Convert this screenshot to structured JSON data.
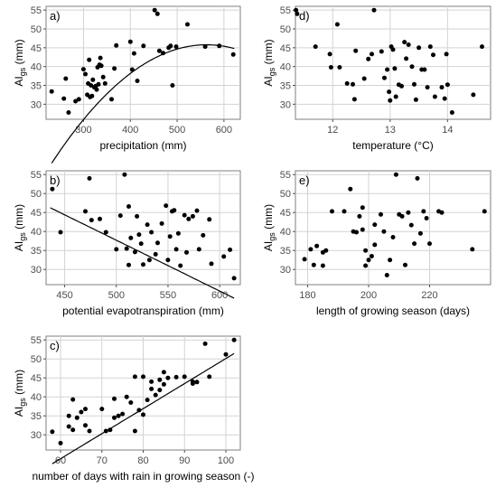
{
  "chart_data": [
    {
      "id": "a",
      "type": "scatter",
      "panel_label": "a)",
      "xlabel": "precipitation (mm)",
      "ylabel_main": "AI",
      "ylabel_sub": "gs",
      "ylabel_unit": " (mm)",
      "xlim": [
        220,
        635
      ],
      "ylim": [
        26,
        56
      ],
      "xticks": [
        300,
        400,
        500,
        600
      ],
      "yticks": [
        30,
        35,
        40,
        45,
        50,
        55
      ],
      "grid": true,
      "fit": {
        "kind": "quadratic",
        "x_range": [
          232,
          622
        ],
        "coef": [
          -0.000287,
          0.3232,
          -45.2
        ]
      },
      "points": [
        [
          232,
          33.4
        ],
        [
          258,
          31.5
        ],
        [
          262,
          36.8
        ],
        [
          268,
          27.8
        ],
        [
          283,
          30.8
        ],
        [
          290,
          31.3
        ],
        [
          300,
          39.3
        ],
        [
          304,
          38.0
        ],
        [
          308,
          32.5
        ],
        [
          310,
          35.5
        ],
        [
          312,
          41.8
        ],
        [
          314,
          31.9
        ],
        [
          316,
          35.0
        ],
        [
          318,
          32.2
        ],
        [
          320,
          36.5
        ],
        [
          323,
          34.5
        ],
        [
          326,
          34.8
        ],
        [
          328,
          33.9
        ],
        [
          330,
          39.8
        ],
        [
          332,
          35.3
        ],
        [
          334,
          40.5
        ],
        [
          336,
          42.3
        ],
        [
          338,
          40.2
        ],
        [
          342,
          37.2
        ],
        [
          346,
          35.5
        ],
        [
          360,
          31.3
        ],
        [
          366,
          39.5
        ],
        [
          370,
          45.6
        ],
        [
          400,
          46.6
        ],
        [
          404,
          39.2
        ],
        [
          408,
          43.5
        ],
        [
          415,
          36.2
        ],
        [
          428,
          45.5
        ],
        [
          452,
          55.0
        ],
        [
          458,
          54.0
        ],
        [
          462,
          44.2
        ],
        [
          470,
          43.6
        ],
        [
          482,
          45.0
        ],
        [
          486,
          45.5
        ],
        [
          490,
          35.0
        ],
        [
          498,
          45.3
        ],
        [
          522,
          51.2
        ],
        [
          560,
          45.3
        ],
        [
          590,
          45.5
        ],
        [
          620,
          43.2
        ]
      ]
    },
    {
      "id": "d",
      "type": "scatter",
      "panel_label": "d)",
      "xlabel": "temperature (°C)",
      "ylabel_main": "AI",
      "ylabel_sub": "gs",
      "ylabel_unit": " (mm)",
      "xlim": [
        11.35,
        14.75
      ],
      "ylim": [
        26,
        56
      ],
      "xticks": [
        12,
        13,
        14
      ],
      "yticks": [
        30,
        35,
        40,
        45,
        50,
        55
      ],
      "grid": true,
      "points": [
        [
          11.36,
          55.0
        ],
        [
          11.38,
          54.0
        ],
        [
          11.7,
          45.3
        ],
        [
          11.95,
          43.3
        ],
        [
          11.97,
          39.8
        ],
        [
          12.08,
          51.2
        ],
        [
          12.12,
          39.8
        ],
        [
          12.25,
          35.5
        ],
        [
          12.35,
          35.3
        ],
        [
          12.38,
          31.3
        ],
        [
          12.4,
          44.2
        ],
        [
          12.55,
          36.8
        ],
        [
          12.62,
          42.0
        ],
        [
          12.68,
          43.3
        ],
        [
          12.72,
          55.0
        ],
        [
          12.85,
          44.0
        ],
        [
          12.9,
          37.0
        ],
        [
          12.95,
          39.2
        ],
        [
          12.98,
          33.3
        ],
        [
          13.0,
          31.0
        ],
        [
          13.02,
          45.3
        ],
        [
          13.05,
          44.5
        ],
        [
          13.08,
          39.5
        ],
        [
          13.1,
          32.0
        ],
        [
          13.15,
          35.2
        ],
        [
          13.2,
          34.8
        ],
        [
          13.25,
          46.5
        ],
        [
          13.28,
          42.1
        ],
        [
          13.32,
          45.8
        ],
        [
          13.38,
          40.0
        ],
        [
          13.42,
          35.3
        ],
        [
          13.45,
          31.2
        ],
        [
          13.5,
          45.0
        ],
        [
          13.55,
          39.2
        ],
        [
          13.6,
          39.2
        ],
        [
          13.65,
          34.5
        ],
        [
          13.7,
          45.3
        ],
        [
          13.75,
          43.1
        ],
        [
          13.78,
          32.0
        ],
        [
          13.9,
          34.5
        ],
        [
          13.95,
          31.5
        ],
        [
          13.98,
          43.3
        ],
        [
          14.0,
          35.2
        ],
        [
          14.08,
          27.8
        ],
        [
          14.45,
          32.5
        ],
        [
          14.6,
          45.3
        ]
      ]
    },
    {
      "id": "b",
      "type": "scatter",
      "panel_label": "b)",
      "xlabel": "potential evapotranspiration (mm)",
      "ylabel_main": "AI",
      "ylabel_sub": "gs",
      "ylabel_unit": " (mm)",
      "xlim": [
        432,
        620
      ],
      "ylim": [
        26,
        56
      ],
      "xticks": [
        450,
        500,
        550,
        600
      ],
      "yticks": [
        30,
        35,
        40,
        45,
        50,
        55
      ],
      "grid": true,
      "fit": {
        "kind": "linear",
        "x_range": [
          436,
          614
        ],
        "coef": [
          104.6,
          -0.1338
        ]
      },
      "points": [
        [
          438,
          51.2
        ],
        [
          446,
          39.8
        ],
        [
          470,
          45.3
        ],
        [
          474,
          54.0
        ],
        [
          476,
          43.0
        ],
        [
          484,
          43.3
        ],
        [
          490,
          39.8
        ],
        [
          500,
          35.3
        ],
        [
          504,
          44.2
        ],
        [
          508,
          55.0
        ],
        [
          510,
          35.5
        ],
        [
          512,
          31.2
        ],
        [
          512,
          46.6
        ],
        [
          514,
          38.3
        ],
        [
          518,
          34.6
        ],
        [
          520,
          44.0
        ],
        [
          522,
          39.2
        ],
        [
          524,
          36.8
        ],
        [
          526,
          31.3
        ],
        [
          530,
          41.8
        ],
        [
          532,
          32.5
        ],
        [
          534,
          39.8
        ],
        [
          538,
          34.0
        ],
        [
          540,
          37.0
        ],
        [
          544,
          42.1
        ],
        [
          548,
          46.8
        ],
        [
          550,
          32.5
        ],
        [
          552,
          38.7
        ],
        [
          554,
          45.3
        ],
        [
          556,
          45.6
        ],
        [
          558,
          35.3
        ],
        [
          560,
          39.5
        ],
        [
          562,
          31.0
        ],
        [
          566,
          44.3
        ],
        [
          568,
          34.5
        ],
        [
          570,
          43.3
        ],
        [
          574,
          44.0
        ],
        [
          578,
          45.5
        ],
        [
          580,
          35.3
        ],
        [
          584,
          39.0
        ],
        [
          590,
          43.2
        ],
        [
          592,
          31.5
        ],
        [
          604,
          33.4
        ],
        [
          610,
          35.2
        ],
        [
          614,
          27.7
        ]
      ]
    },
    {
      "id": "e",
      "type": "scatter",
      "panel_label": "e)",
      "xlabel": "length of growing season (days)",
      "ylabel_main": "AI",
      "ylabel_sub": "gs",
      "ylabel_unit": " (mm)",
      "xlim": [
        176,
        240
      ],
      "ylim": [
        26,
        56
      ],
      "xticks": [
        180,
        200,
        220
      ],
      "yticks": [
        30,
        35,
        40,
        45,
        50,
        55
      ],
      "grid": true,
      "points": [
        [
          179,
          32.7
        ],
        [
          181,
          35.3
        ],
        [
          182,
          31.2
        ],
        [
          183,
          36.2
        ],
        [
          185,
          31.0
        ],
        [
          185,
          34.5
        ],
        [
          186,
          35.0
        ],
        [
          188,
          45.3
        ],
        [
          192,
          45.3
        ],
        [
          194,
          51.2
        ],
        [
          195,
          40.0
        ],
        [
          196,
          39.8
        ],
        [
          197,
          44.0
        ],
        [
          198,
          46.3
        ],
        [
          198,
          40.5
        ],
        [
          199,
          35.0
        ],
        [
          199,
          31.0
        ],
        [
          200,
          32.5
        ],
        [
          201,
          33.5
        ],
        [
          202,
          41.8
        ],
        [
          202,
          36.5
        ],
        [
          204,
          44.5
        ],
        [
          205,
          40.0
        ],
        [
          206,
          28.5
        ],
        [
          207,
          32.5
        ],
        [
          208,
          38.5
        ],
        [
          209,
          55.0
        ],
        [
          210,
          44.5
        ],
        [
          211,
          44.0
        ],
        [
          212,
          31.2
        ],
        [
          213,
          45.0
        ],
        [
          214,
          41.7
        ],
        [
          215,
          36.8
        ],
        [
          216,
          54.0
        ],
        [
          217,
          39.5
        ],
        [
          218,
          45.3
        ],
        [
          219,
          43.5
        ],
        [
          220,
          36.8
        ],
        [
          223,
          45.3
        ],
        [
          224,
          45.0
        ],
        [
          234,
          35.3
        ],
        [
          238,
          45.3
        ]
      ]
    },
    {
      "id": "c",
      "type": "scatter",
      "panel_label": "c)",
      "xlabel": "number of days with rain in growing season (-)",
      "ylabel_main": "AI",
      "ylabel_sub": "gs",
      "ylabel_unit": " (mm)",
      "xlim": [
        56.5,
        103.5
      ],
      "ylim": [
        26,
        56
      ],
      "xticks": [
        60,
        70,
        80,
        90,
        100
      ],
      "yticks": [
        30,
        35,
        40,
        45,
        50,
        55
      ],
      "grid": true,
      "fit": {
        "kind": "linear",
        "x_range": [
          58,
          102
        ],
        "coef": [
          -15.9,
          0.66
        ]
      },
      "points": [
        [
          58,
          30.8
        ],
        [
          60,
          27.8
        ],
        [
          62,
          35.0
        ],
        [
          62,
          32.2
        ],
        [
          63,
          31.3
        ],
        [
          63,
          39.3
        ],
        [
          64,
          34.5
        ],
        [
          65,
          36.0
        ],
        [
          66,
          32.5
        ],
        [
          66,
          36.8
        ],
        [
          67,
          31.0
        ],
        [
          70,
          36.8
        ],
        [
          71,
          31.0
        ],
        [
          72,
          31.3
        ],
        [
          73,
          34.5
        ],
        [
          73,
          39.5
        ],
        [
          74,
          35.0
        ],
        [
          75,
          35.5
        ],
        [
          76,
          40.0
        ],
        [
          77,
          38.5
        ],
        [
          78,
          31.0
        ],
        [
          78,
          45.3
        ],
        [
          79,
          36.5
        ],
        [
          80,
          35.3
        ],
        [
          80,
          45.3
        ],
        [
          81,
          39.2
        ],
        [
          82,
          42.1
        ],
        [
          82,
          44.0
        ],
        [
          83,
          40.5
        ],
        [
          84,
          41.8
        ],
        [
          84,
          44.5
        ],
        [
          85,
          43.3
        ],
        [
          85,
          46.5
        ],
        [
          86,
          45.0
        ],
        [
          88,
          45.2
        ],
        [
          90,
          45.3
        ],
        [
          92,
          44.0
        ],
        [
          92,
          43.5
        ],
        [
          93,
          43.9
        ],
        [
          95,
          54.0
        ],
        [
          96,
          45.3
        ],
        [
          100,
          51.2
        ],
        [
          102,
          55.0
        ]
      ]
    }
  ]
}
